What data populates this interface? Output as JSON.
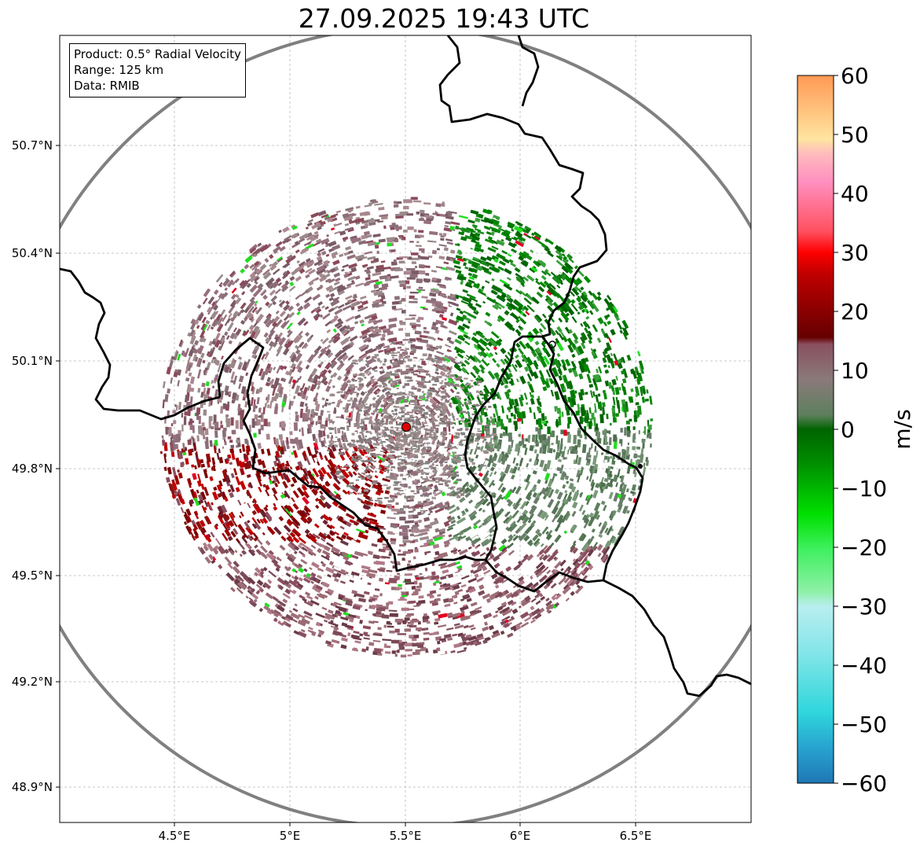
{
  "title": "27.09.2025 19:43 UTC",
  "info_box": {
    "product": "Product: 0.5° Radial Velocity",
    "range": "Range: 125 km",
    "data": "Data: RMIB"
  },
  "axes": {
    "lon_ticks": [
      "4.5°E",
      "5°E",
      "5.5°E",
      "6°E",
      "6.5°E"
    ],
    "lat_ticks": [
      "50.7°N",
      "50.4°N",
      "50.1°N",
      "49.8°N",
      "49.5°N",
      "49.2°N",
      "48.9°N"
    ]
  },
  "colorbar": {
    "label": "m/s",
    "ticks": [
      "60",
      "50",
      "40",
      "30",
      "20",
      "10",
      "0",
      "−10",
      "−20",
      "−30",
      "−40",
      "−50",
      "−60"
    ],
    "min": -60,
    "max": 60
  },
  "colors": {
    "range_ring": "#808080",
    "radar_site": "#e00000",
    "border": "#000000",
    "grid": "#b0b0b0"
  },
  "markers": {
    "radar_site": "radar-site-icon"
  }
}
